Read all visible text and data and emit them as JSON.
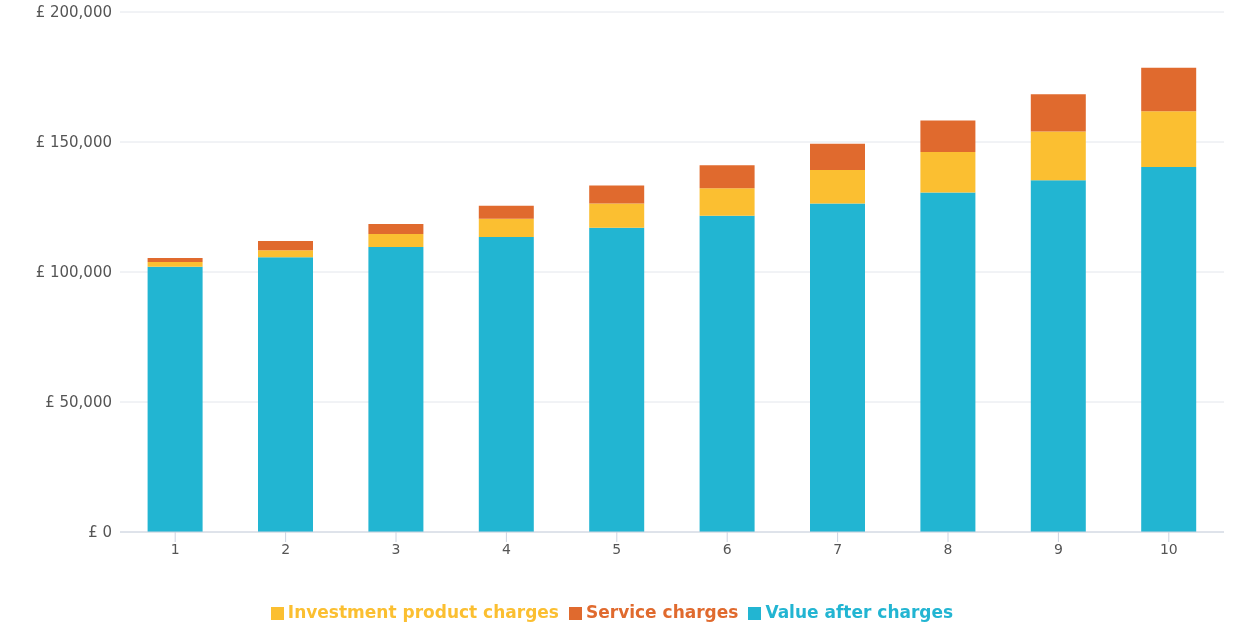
{
  "chart_data": {
    "type": "bar",
    "stacked": true,
    "categories": [
      "1",
      "2",
      "3",
      "4",
      "5",
      "6",
      "7",
      "8",
      "9",
      "10"
    ],
    "series": [
      {
        "name": "Value after charges",
        "color": "#22b5d2",
        "values": [
          102000,
          105700,
          109600,
          113500,
          117000,
          121600,
          126300,
          130600,
          135300,
          140400
        ]
      },
      {
        "name": "Investment product charges",
        "color": "#fbbf31",
        "values": [
          1800,
          2700,
          5000,
          7000,
          9300,
          10600,
          12900,
          15600,
          18700,
          21400
        ]
      },
      {
        "name": "Service charges",
        "color": "#e06a2e",
        "values": [
          1600,
          3500,
          3900,
          5000,
          7000,
          8900,
          10100,
          12100,
          14400,
          16800
        ]
      }
    ],
    "ylim": [
      0,
      200000
    ],
    "yticks": [
      {
        "value": 0,
        "label": "£ 0"
      },
      {
        "value": 50000,
        "label": "£ 50,000"
      },
      {
        "value": 100000,
        "label": "£ 100,000"
      },
      {
        "value": 150000,
        "label": "£ 150,000"
      },
      {
        "value": 200000,
        "label": "£ 200,000"
      }
    ],
    "grid": "y",
    "legend": "bottom"
  }
}
